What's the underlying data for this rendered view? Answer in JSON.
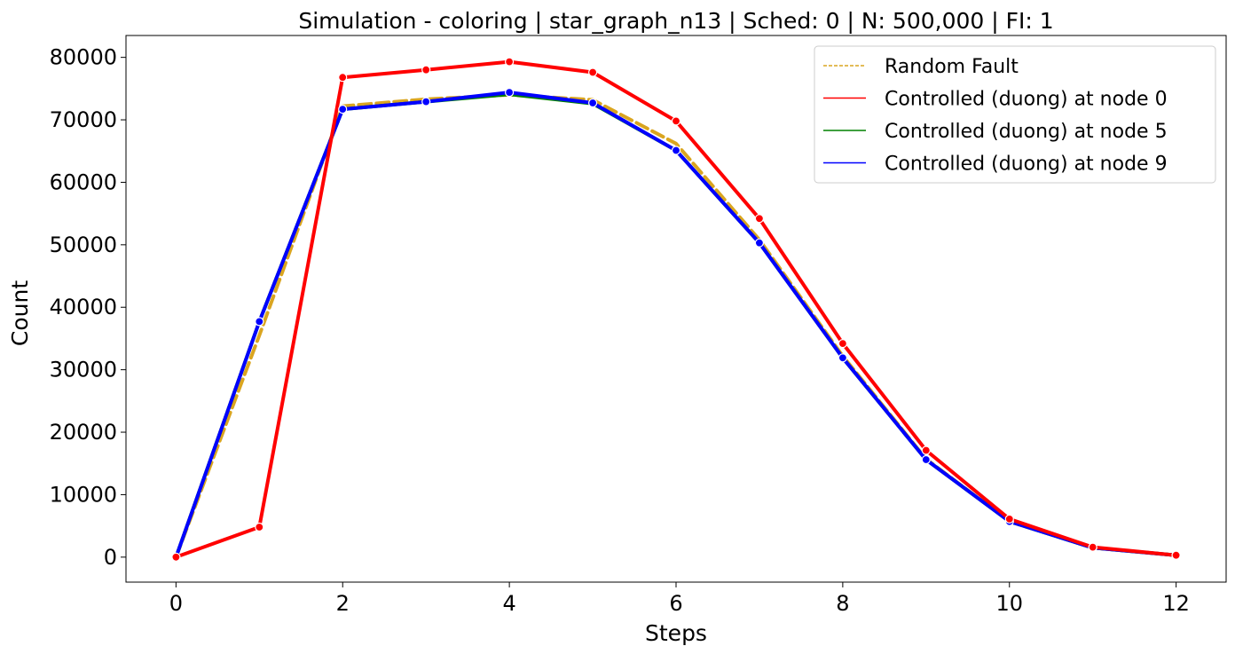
{
  "chart_data": {
    "type": "line",
    "title": "Simulation - coloring | star_graph_n13 | Sched: 0 | N: 500,000 | FI: 1",
    "xlabel": "Steps",
    "ylabel": "Count",
    "xlim": [
      -0.6,
      12.6
    ],
    "ylim": [
      -4000,
      83500
    ],
    "xticks": [
      0,
      2,
      4,
      6,
      8,
      10,
      12
    ],
    "xtick_labels": [
      "0",
      "2",
      "4",
      "6",
      "8",
      "10",
      "12"
    ],
    "yticks": [
      0,
      10000,
      20000,
      30000,
      40000,
      50000,
      60000,
      70000,
      80000
    ],
    "ytick_labels": [
      "0",
      "10000",
      "20000",
      "30000",
      "40000",
      "50000",
      "60000",
      "70000",
      "80000"
    ],
    "grid": false,
    "legend_position": "top-right",
    "x": [
      0,
      1,
      2,
      3,
      4,
      5,
      6,
      7,
      8,
      9,
      10,
      11,
      12
    ],
    "series": [
      {
        "name": "Random Fault",
        "color": "#DAA520",
        "dashed": true,
        "markers": false,
        "values": [
          0,
          35500,
          72200,
          73300,
          74000,
          73200,
          66200,
          50800,
          32200,
          15700,
          5700,
          1500,
          300
        ]
      },
      {
        "name": "Controlled (duong) at node 0",
        "color": "#FF0000",
        "dashed": false,
        "markers": true,
        "values": [
          0,
          4800,
          76800,
          78000,
          79300,
          77600,
          69800,
          54200,
          34200,
          17100,
          6100,
          1600,
          300
        ]
      },
      {
        "name": "Controlled (duong) at node 5",
        "color": "#008000",
        "dashed": false,
        "markers": false,
        "values": [
          0,
          37700,
          71700,
          72900,
          74100,
          72600,
          65100,
          50300,
          31900,
          15600,
          5700,
          1500,
          300
        ]
      },
      {
        "name": "Controlled (duong) at node 9",
        "color": "#0000FF",
        "dashed": false,
        "markers": true,
        "values": [
          0,
          37700,
          71700,
          72900,
          74400,
          72700,
          65100,
          50300,
          31900,
          15600,
          5700,
          1500,
          300
        ]
      }
    ]
  }
}
